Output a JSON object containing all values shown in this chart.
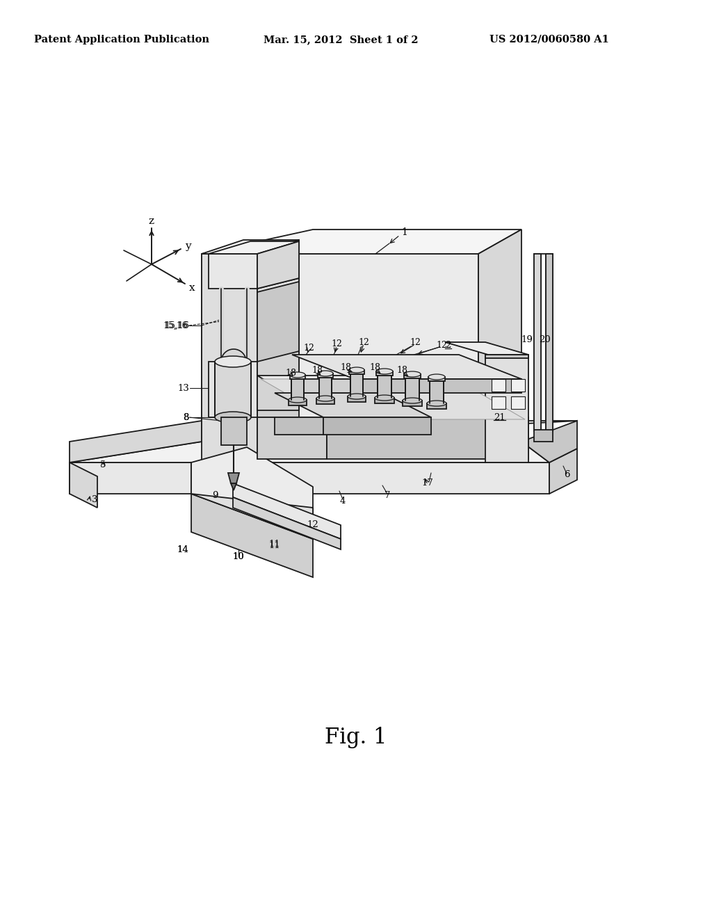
{
  "background_color": "#ffffff",
  "header_left": "Patent Application Publication",
  "header_center": "Mar. 15, 2012  Sheet 1 of 2",
  "header_right": "US 2012/0060580 A1",
  "caption": "Fig. 1",
  "header_fontsize": 10.5,
  "caption_fontsize": 22,
  "lc": "#1a1a1a",
  "lw": 1.3,
  "light_fill": "#f0f0f0",
  "mid_fill": "#e0e0e0",
  "dark_fill": "#c8c8c8",
  "darkest_fill": "#b0b0b0"
}
